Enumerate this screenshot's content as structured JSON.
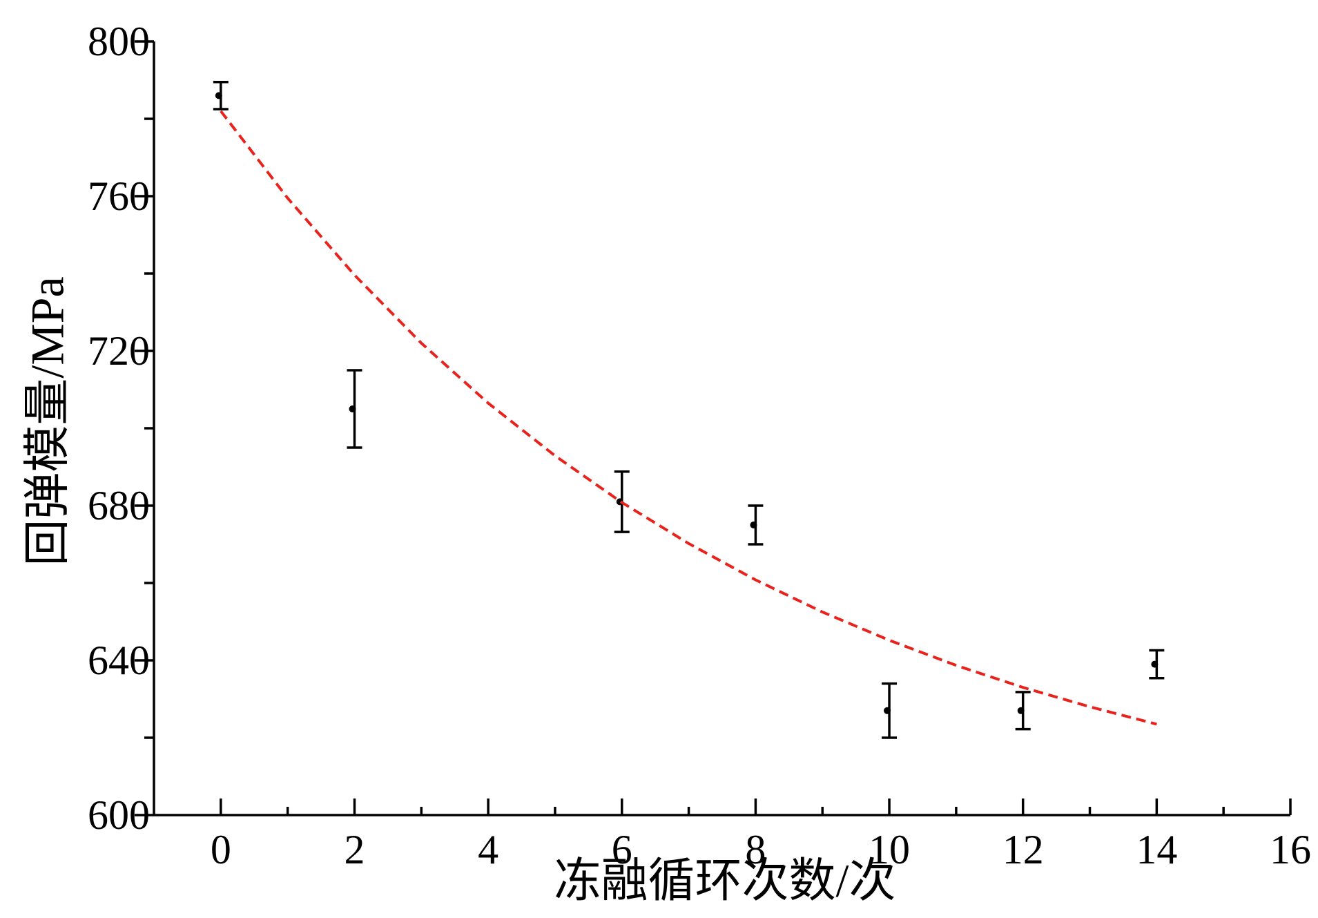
{
  "chart_data": {
    "type": "scatter",
    "x_label": "冻融循环次数/次",
    "y_label": "回弹模量/MPa",
    "xlim": [
      -1,
      16
    ],
    "xticks": [
      0,
      2,
      4,
      6,
      8,
      10,
      12,
      14,
      16
    ],
    "xminorticks": [
      1,
      3,
      5,
      7,
      9,
      11,
      13,
      15
    ],
    "ylim": [
      600,
      800
    ],
    "yticks": [
      600,
      640,
      680,
      720,
      760,
      800
    ],
    "yminorticks": [
      620,
      660,
      700,
      740,
      780
    ],
    "series": [
      {
        "type": "errorbar",
        "color": "#000000",
        "x": [
          0,
          2,
          6,
          8,
          10,
          12,
          14
        ],
        "values": [
          786,
          705,
          681,
          675,
          627,
          627,
          639
        ],
        "errors": [
          3.5,
          10,
          7.8,
          5,
          7,
          4.8,
          3.6
        ]
      },
      {
        "type": "line",
        "color": "#e8221c",
        "dashed": true,
        "x": [
          0,
          1,
          2,
          3,
          4,
          5,
          6,
          7,
          8,
          9,
          10,
          11,
          12,
          13,
          14
        ],
        "values": [
          782,
          759.5,
          739.6,
          722,
          706.5,
          692.9,
          680.8,
          670.2,
          660.8,
          652.5,
          645.2,
          638.7,
          633,
          628,
          623.5
        ]
      }
    ]
  }
}
